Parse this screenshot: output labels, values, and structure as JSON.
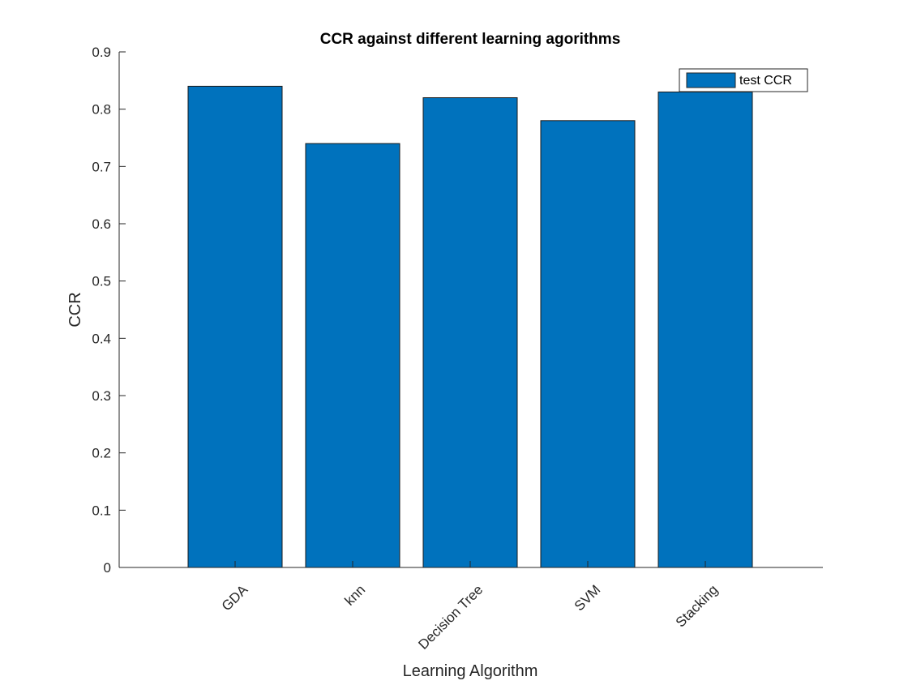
{
  "chart_data": {
    "type": "bar",
    "title": "CCR against different learning agorithms",
    "xlabel": "Learning Algorithm",
    "ylabel": "CCR",
    "categories": [
      "GDA",
      "knn",
      "Decision Tree",
      "SVM",
      "Stacking"
    ],
    "series": [
      {
        "name": "test CCR",
        "values": [
          0.84,
          0.74,
          0.82,
          0.78,
          0.83
        ]
      }
    ],
    "ylim": [
      0,
      0.9
    ],
    "yticks": [
      "0",
      "0.1",
      "0.2",
      "0.3",
      "0.4",
      "0.5",
      "0.6",
      "0.7",
      "0.8",
      "0.9"
    ],
    "grid": false,
    "legend_position": "top-right",
    "bar_color": "#0072BD"
  }
}
